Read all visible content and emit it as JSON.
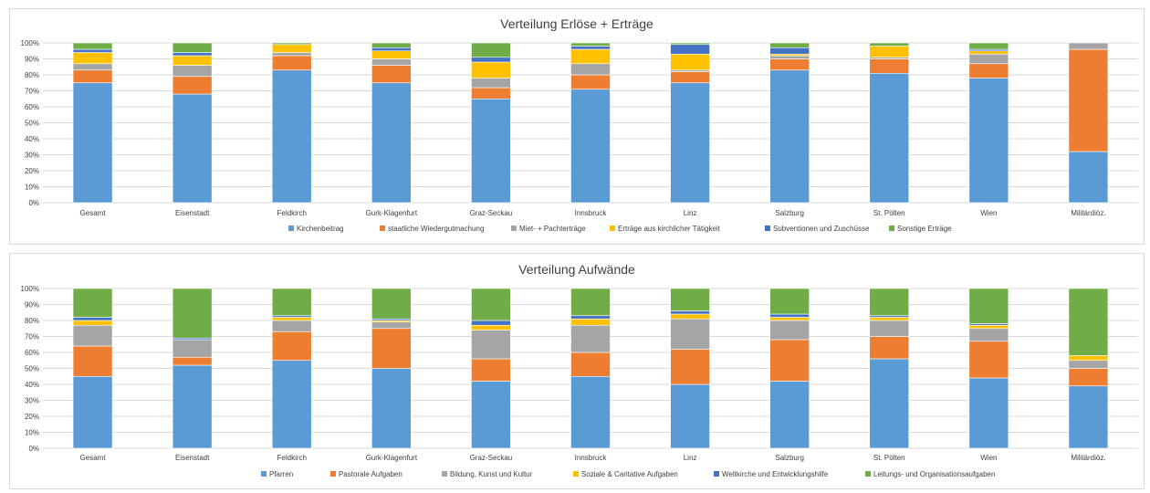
{
  "chart_data": [
    {
      "type": "bar",
      "stacked": "percent",
      "title": "Verteilung Erlöse + Erträge",
      "yticks": [
        "0%",
        "10%",
        "20%",
        "30%",
        "40%",
        "50%",
        "60%",
        "70%",
        "80%",
        "90%",
        "100%"
      ],
      "ylim": [
        0,
        100
      ],
      "grid": true,
      "legend_position": "bottom",
      "categories": [
        "Gesamt",
        "Eisenstadt",
        "Feldkirch",
        "Gurk-Klagenfurt",
        "Graz-Seckau",
        "Innsbruck",
        "Linz",
        "Salzburg",
        "St. Pölten",
        "Wien",
        "Militärdiöz."
      ],
      "series": [
        {
          "name": "Kirchenbeitrag",
          "color": "#5b9bd5",
          "values": [
            75,
            68,
            83,
            75,
            65,
            71,
            75,
            83,
            81,
            78,
            32
          ]
        },
        {
          "name": "staatliche Wiedergutmachung",
          "color": "#ed7d31",
          "values": [
            8,
            11,
            9,
            11,
            7,
            9,
            7,
            7,
            9,
            9,
            64
          ]
        },
        {
          "name": "Miet- + Pachterträge",
          "color": "#a5a5a5",
          "values": [
            4,
            7,
            2,
            4,
            6,
            7,
            1,
            2,
            1,
            6,
            4
          ]
        },
        {
          "name": "Erträge aus kirchlicher Tätigkeit",
          "color": "#ffc000",
          "values": [
            7,
            6,
            5,
            5,
            10,
            9,
            10,
            1,
            7,
            2,
            0
          ]
        },
        {
          "name": "Subventionen und Zuschüsse",
          "color": "#4472c4",
          "values": [
            2,
            2,
            0,
            2,
            3,
            2,
            6,
            4,
            0,
            1,
            0
          ]
        },
        {
          "name": "Sonstige Erträge",
          "color": "#70ad47",
          "values": [
            4,
            6,
            1,
            3,
            9,
            2,
            1,
            3,
            2,
            4,
            0
          ]
        }
      ]
    },
    {
      "type": "bar",
      "stacked": "percent",
      "title": "Verteilung Aufwände",
      "yticks": [
        "0%",
        "10%",
        "20%",
        "30%",
        "40%",
        "50%",
        "60%",
        "70%",
        "80%",
        "90%",
        "100%"
      ],
      "ylim": [
        0,
        100
      ],
      "grid": true,
      "legend_position": "bottom",
      "categories": [
        "Gesamt",
        "Eisenstadt",
        "Feldkirch",
        "Gurk-Klagenfurt",
        "Graz-Seckau",
        "Innsbruck",
        "Linz",
        "Salzburg",
        "St. Pölten",
        "Wien",
        "Militärdiöz."
      ],
      "series": [
        {
          "name": "Pfarren",
          "color": "#5b9bd5",
          "values": [
            45,
            52,
            55,
            50,
            42,
            45,
            40,
            42,
            56,
            44,
            39
          ]
        },
        {
          "name": "Pastorale Aufgaben",
          "color": "#ed7d31",
          "values": [
            19,
            5,
            18,
            25,
            14,
            15,
            22,
            26,
            14,
            23,
            11
          ]
        },
        {
          "name": "Bildung, Kunst und Kultur",
          "color": "#a5a5a5",
          "values": [
            13,
            11,
            7,
            4,
            18,
            17,
            19,
            12,
            10,
            8,
            5
          ]
        },
        {
          "name": "Soziale & Caritative Aufgaben",
          "color": "#ffc000",
          "values": [
            3,
            0,
            2,
            1,
            3,
            4,
            3,
            2,
            2,
            2,
            3
          ]
        },
        {
          "name": "Weltkirche und Entwicklungshilfe",
          "color": "#4472c4",
          "values": [
            2,
            1,
            1,
            1,
            3,
            2,
            2,
            2,
            1,
            1,
            0
          ]
        },
        {
          "name": "Leitungs- und Organisationsaufgaben",
          "color": "#70ad47",
          "values": [
            18,
            31,
            17,
            19,
            20,
            17,
            14,
            16,
            17,
            22,
            42
          ]
        }
      ]
    }
  ]
}
